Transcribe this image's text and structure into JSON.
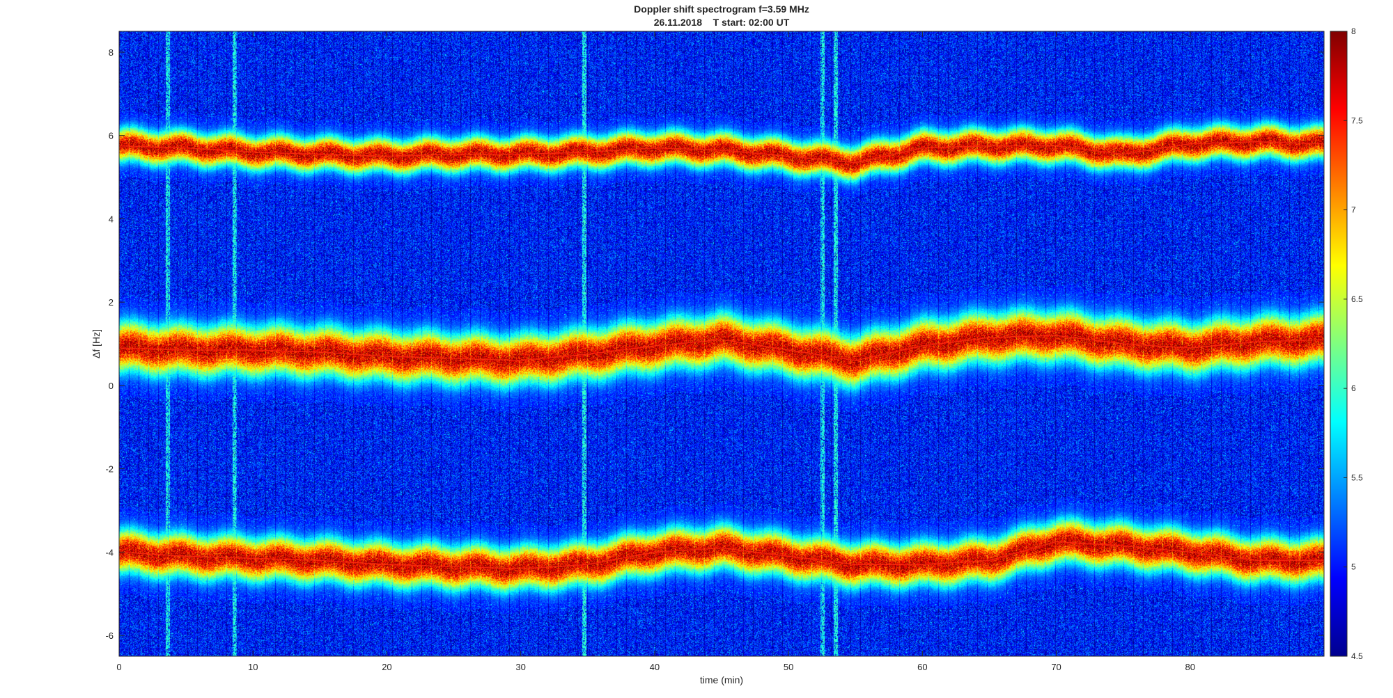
{
  "figure": {
    "title_line1": "Doppler shift spectrogram f=3.59 MHz",
    "title_line2": "26.11.2018    T start: 02:00 UT"
  },
  "chart_data": {
    "type": "heatmap",
    "title": "Doppler shift spectrogram f=3.59 MHz",
    "subtitle": "26.11.2018    T start: 02:00 UT",
    "xlabel": "time (min)",
    "ylabel": "Δf [Hz]",
    "xlim": [
      0,
      90
    ],
    "ylim": [
      -6.5,
      8.5
    ],
    "x_ticks": [
      0,
      10,
      20,
      30,
      40,
      50,
      60,
      70,
      80
    ],
    "y_ticks": [
      -6,
      -4,
      -2,
      0,
      2,
      4,
      6,
      8
    ],
    "colormap": "jet",
    "colorbar": {
      "range": [
        4.5,
        8
      ],
      "ticks": [
        4.5,
        5,
        5.5,
        6,
        6.5,
        7,
        7.5,
        8
      ],
      "position": "right"
    },
    "grid": false,
    "background_level": 5.0,
    "traces": [
      {
        "x": [
          0,
          5,
          10,
          15,
          20,
          25,
          30,
          35,
          40,
          45,
          50,
          55,
          60,
          65,
          70,
          75,
          80,
          85,
          90
        ],
        "y": [
          5.75,
          5.7,
          5.6,
          5.55,
          5.5,
          5.55,
          5.55,
          5.6,
          5.7,
          5.65,
          5.5,
          5.35,
          5.7,
          5.75,
          5.75,
          5.55,
          5.8,
          5.85,
          5.8
        ],
        "peak": 7.9,
        "halo_hz": 0.5
      },
      {
        "x": [
          0,
          5,
          10,
          15,
          20,
          25,
          30,
          35,
          40,
          45,
          50,
          55,
          60,
          65,
          70,
          75,
          80,
          85,
          90
        ],
        "y": [
          0.9,
          0.85,
          0.85,
          0.8,
          0.7,
          0.65,
          0.6,
          0.75,
          0.95,
          1.1,
          0.85,
          0.6,
          0.95,
          1.15,
          1.2,
          1.0,
          0.9,
          1.05,
          1.1
        ],
        "peak": 7.9,
        "halo_hz": 0.75
      },
      {
        "x": [
          0,
          5,
          10,
          15,
          20,
          25,
          30,
          35,
          40,
          45,
          50,
          55,
          60,
          65,
          70,
          75,
          80,
          85,
          90
        ],
        "y": [
          -4.0,
          -4.1,
          -4.15,
          -4.2,
          -4.3,
          -4.35,
          -4.4,
          -4.3,
          -4.0,
          -3.9,
          -4.1,
          -4.3,
          -4.3,
          -4.2,
          -3.75,
          -3.85,
          -4.0,
          -4.2,
          -4.2
        ],
        "peak": 7.9,
        "halo_hz": 0.65
      }
    ],
    "vertical_streaks_min": [
      3.6,
      8.6,
      34.7,
      52.5,
      53.5
    ]
  }
}
